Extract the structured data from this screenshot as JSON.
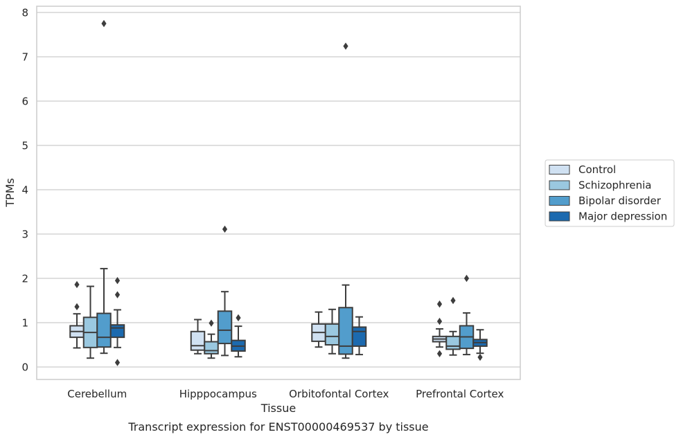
{
  "chart_data": {
    "type": "box",
    "caption": "Transcript expression for ENST00000469537 by tissue",
    "xlabel": "Tissue",
    "ylabel": "TPMs",
    "ylim": [
      -0.3,
      8.15
    ],
    "yticks": [
      0,
      1,
      2,
      3,
      4,
      5,
      6,
      7,
      8
    ],
    "categories": [
      "Cerebellum",
      "Hipppocampus",
      "Orbitofontal Cortex",
      "Prefrontal Cortex"
    ],
    "grid": "horizontal",
    "legend_position": "right",
    "series": [
      {
        "name": "Control",
        "color": "#d0e1f2",
        "boxes": [
          {
            "whisker_low": 0.43,
            "q1": 0.67,
            "median": 0.8,
            "q3": 0.93,
            "whisker_high": 1.2,
            "outliers": [
              1.36,
              1.86
            ]
          },
          {
            "whisker_low": 0.3,
            "q1": 0.38,
            "median": 0.48,
            "q3": 0.8,
            "whisker_high": 1.07,
            "outliers": []
          },
          {
            "whisker_low": 0.45,
            "q1": 0.58,
            "median": 0.78,
            "q3": 0.97,
            "whisker_high": 1.24,
            "outliers": []
          },
          {
            "whisker_low": 0.45,
            "q1": 0.57,
            "median": 0.63,
            "q3": 0.69,
            "whisker_high": 0.86,
            "outliers": [
              1.03,
              1.42,
              0.3
            ]
          }
        ]
      },
      {
        "name": "Schizophrenia",
        "color": "#9ac8e0",
        "boxes": [
          {
            "whisker_low": 0.2,
            "q1": 0.44,
            "median": 0.78,
            "q3": 1.12,
            "whisker_high": 1.82,
            "outliers": []
          },
          {
            "whisker_low": 0.2,
            "q1": 0.3,
            "median": 0.37,
            "q3": 0.57,
            "whisker_high": 0.74,
            "outliers": [
              0.99
            ]
          },
          {
            "whisker_low": 0.3,
            "q1": 0.5,
            "median": 0.69,
            "q3": 0.97,
            "whisker_high": 1.3,
            "outliers": []
          },
          {
            "whisker_low": 0.27,
            "q1": 0.4,
            "median": 0.47,
            "q3": 0.69,
            "whisker_high": 0.8,
            "outliers": [
              1.5
            ]
          }
        ]
      },
      {
        "name": "Bipolar disorder",
        "color": "#529dcc",
        "boxes": [
          {
            "whisker_low": 0.31,
            "q1": 0.45,
            "median": 0.67,
            "q3": 1.21,
            "whisker_high": 2.22,
            "outliers": [
              7.75
            ]
          },
          {
            "whisker_low": 0.26,
            "q1": 0.53,
            "median": 0.83,
            "q3": 1.26,
            "whisker_high": 1.7,
            "outliers": [
              3.11
            ]
          },
          {
            "whisker_low": 0.2,
            "q1": 0.29,
            "median": 0.47,
            "q3": 1.34,
            "whisker_high": 1.85,
            "outliers": [
              7.24
            ]
          },
          {
            "whisker_low": 0.28,
            "q1": 0.42,
            "median": 0.68,
            "q3": 0.93,
            "whisker_high": 1.22,
            "outliers": [
              2.0
            ]
          }
        ]
      },
      {
        "name": "Major depression",
        "color": "#1c6aaf",
        "boxes": [
          {
            "whisker_low": 0.44,
            "q1": 0.67,
            "median": 0.88,
            "q3": 0.95,
            "whisker_high": 1.29,
            "outliers": [
              1.95,
              1.63,
              0.1
            ]
          },
          {
            "whisker_low": 0.23,
            "q1": 0.36,
            "median": 0.47,
            "q3": 0.6,
            "whisker_high": 0.92,
            "outliers": [
              1.11
            ]
          },
          {
            "whisker_low": 0.28,
            "q1": 0.47,
            "median": 0.8,
            "q3": 0.9,
            "whisker_high": 1.13,
            "outliers": []
          },
          {
            "whisker_low": 0.31,
            "q1": 0.47,
            "median": 0.55,
            "q3": 0.62,
            "whisker_high": 0.84,
            "outliers": [
              0.22
            ]
          }
        ]
      }
    ]
  }
}
